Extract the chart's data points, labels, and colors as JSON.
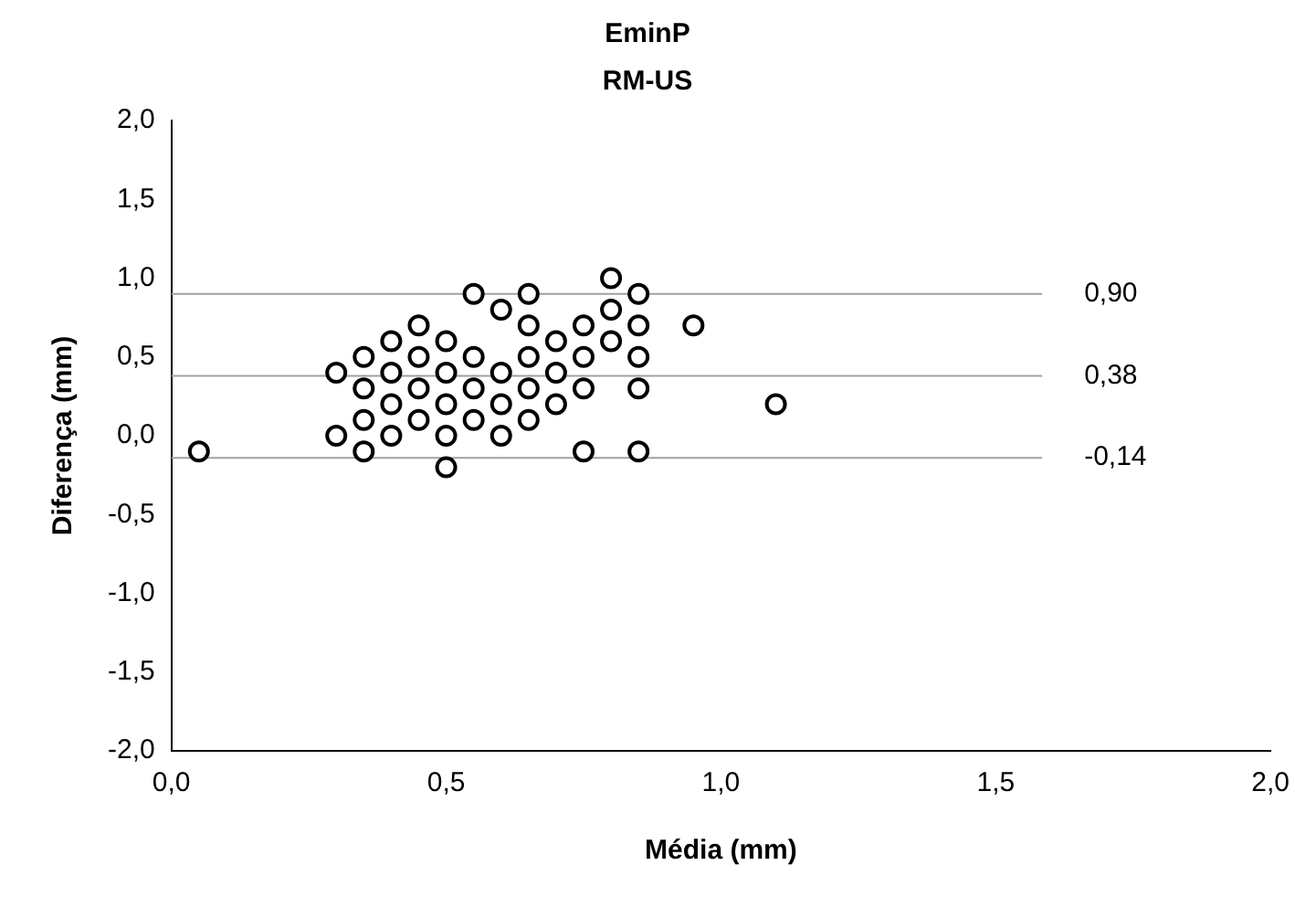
{
  "chart_data": {
    "type": "scatter",
    "title": "EminP",
    "subtitle": "RM-US",
    "xlabel": "Média (mm)",
    "ylabel": "Diferença (mm)",
    "xlim": [
      0,
      2
    ],
    "ylim": [
      -2,
      2
    ],
    "xticks": [
      {
        "value": 0,
        "label": "0,0"
      },
      {
        "value": 0.5,
        "label": "0,5"
      },
      {
        "value": 1,
        "label": "1,0"
      },
      {
        "value": 1.5,
        "label": "1,5"
      },
      {
        "value": 2,
        "label": "2,0"
      }
    ],
    "yticks": [
      {
        "value": -2,
        "label": "-2,0"
      },
      {
        "value": -1.5,
        "label": "-1,5"
      },
      {
        "value": -1,
        "label": "-1,0"
      },
      {
        "value": -0.5,
        "label": "-0,5"
      },
      {
        "value": 0,
        "label": "0,0"
      },
      {
        "value": 0.5,
        "label": "0,5"
      },
      {
        "value": 1,
        "label": "1,0"
      },
      {
        "value": 1.5,
        "label": "1,5"
      },
      {
        "value": 2,
        "label": "2,0"
      }
    ],
    "grid": false,
    "legend": false,
    "marker": "circle",
    "series": [
      {
        "color": "#000000",
        "x": [
          0.05,
          0.3,
          0.3,
          0.35,
          0.35,
          0.35,
          0.35,
          0.4,
          0.4,
          0.4,
          0.4,
          0.45,
          0.45,
          0.45,
          0.45,
          0.5,
          0.5,
          0.5,
          0.5,
          0.5,
          0.55,
          0.55,
          0.55,
          0.55,
          0.6,
          0.6,
          0.6,
          0.6,
          0.65,
          0.65,
          0.65,
          0.65,
          0.65,
          0.7,
          0.7,
          0.7,
          0.75,
          0.75,
          0.75,
          0.75,
          0.8,
          0.8,
          0.8,
          0.85,
          0.85,
          0.85,
          0.85,
          0.85,
          0.95,
          1.1
        ],
        "values": [
          -0.1,
          0.4,
          0.0,
          0.5,
          0.3,
          0.1,
          -0.1,
          0.6,
          0.4,
          0.2,
          0.0,
          0.7,
          0.5,
          0.3,
          0.1,
          0.6,
          0.4,
          0.2,
          0.0,
          -0.2,
          0.9,
          0.5,
          0.3,
          0.1,
          0.8,
          0.4,
          0.2,
          0.0,
          0.9,
          0.7,
          0.5,
          0.3,
          0.1,
          0.6,
          0.4,
          0.2,
          0.7,
          0.5,
          0.3,
          -0.1,
          1.0,
          0.8,
          0.6,
          0.9,
          0.7,
          0.5,
          0.3,
          -0.1,
          0.7,
          0.2
        ]
      }
    ],
    "ref_lines": [
      {
        "axis": "y",
        "value": 0.9,
        "label": "0,90",
        "color": "#a0a0a0"
      },
      {
        "axis": "y",
        "value": 0.38,
        "label": "0,38",
        "color": "#a0a0a0"
      },
      {
        "axis": "y",
        "value": -0.14,
        "label": "-0,14",
        "color": "#a0a0a0"
      }
    ]
  }
}
